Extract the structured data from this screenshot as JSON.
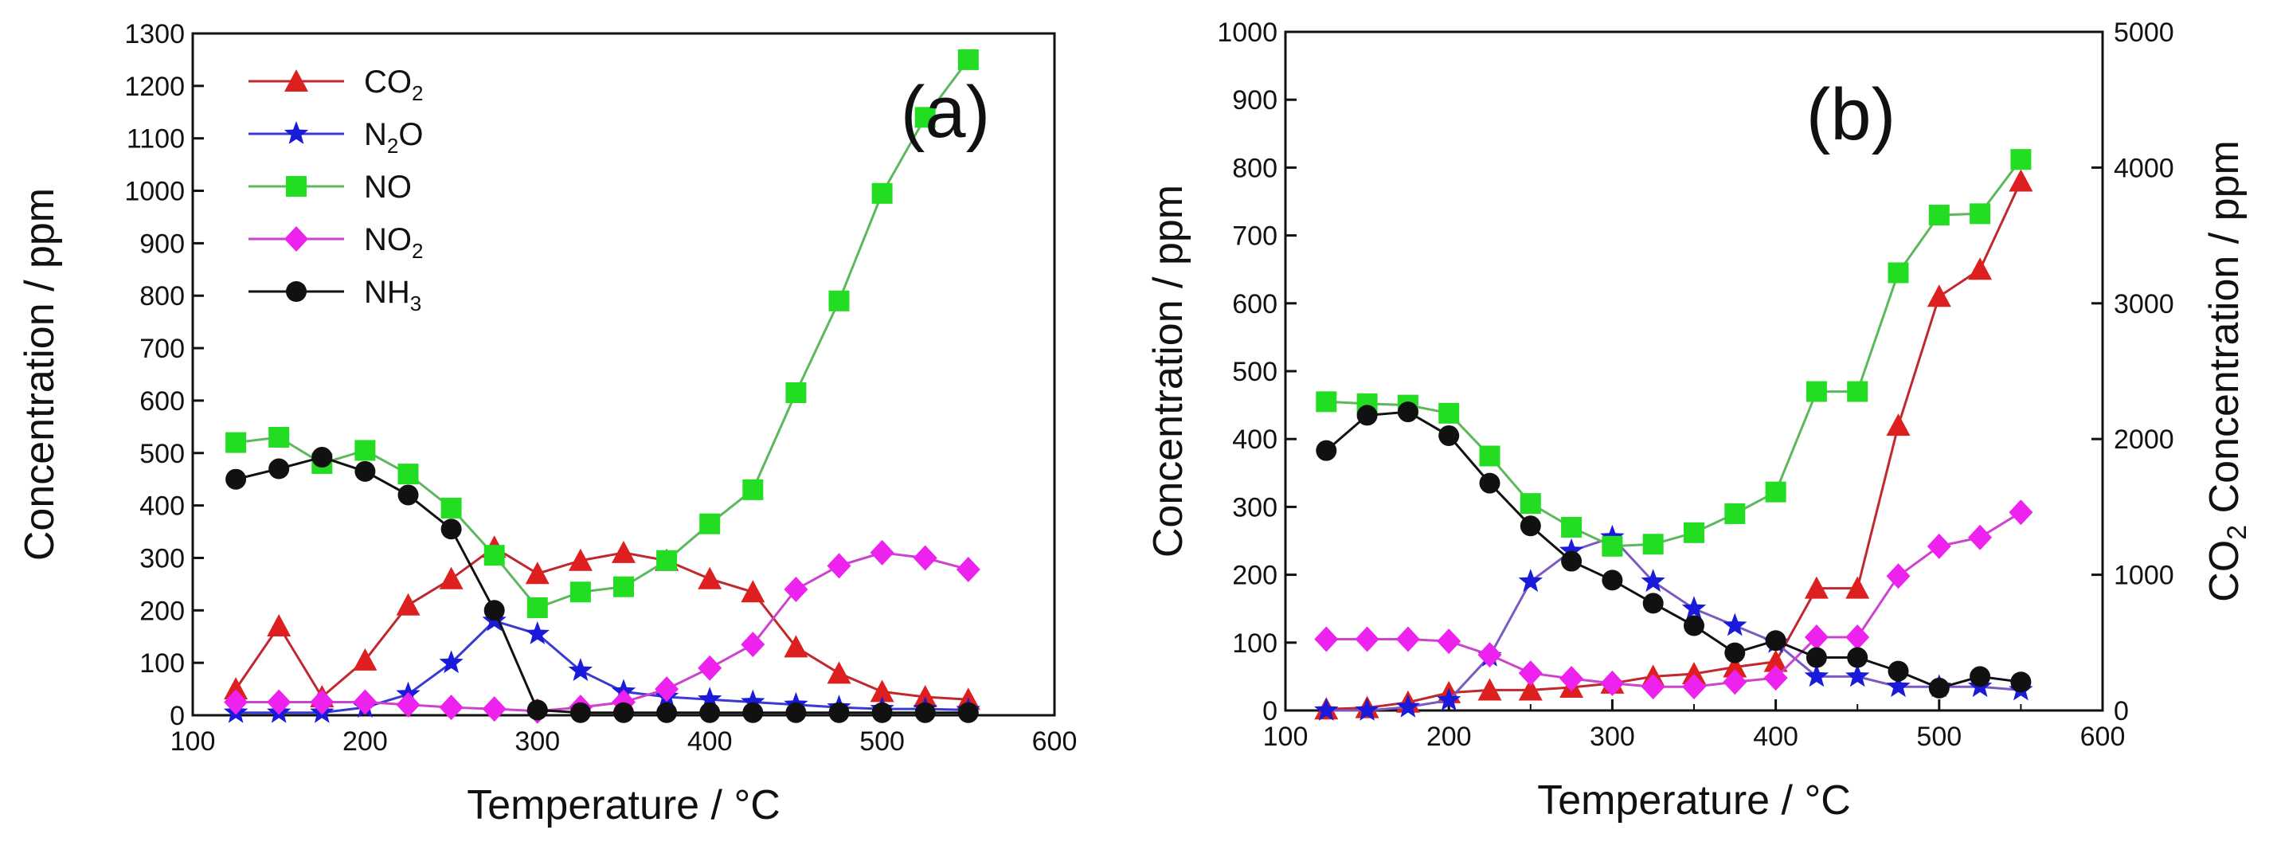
{
  "chart_data": [
    {
      "type": "line",
      "panel_label": "(a)",
      "xlabel": "Temperature / °C",
      "ylabel": "Concentration / ppm",
      "xlim": [
        100,
        600
      ],
      "ylim": [
        0,
        1300
      ],
      "xticks": [
        100,
        200,
        300,
        400,
        500,
        600
      ],
      "yticks": [
        0,
        100,
        200,
        300,
        400,
        500,
        600,
        700,
        800,
        900,
        1000,
        1100,
        1200,
        1300
      ],
      "legend_position": "top-left",
      "x": [
        125,
        150,
        175,
        200,
        225,
        250,
        275,
        300,
        325,
        350,
        375,
        400,
        425,
        450,
        475,
        500,
        525,
        550
      ],
      "series": [
        {
          "name": "CO2",
          "label_main": "CO",
          "label_sub": "2",
          "color": "#dd1f1f",
          "line_color": "#c0282e",
          "marker": "triangle",
          "values": [
            50,
            170,
            35,
            105,
            210,
            260,
            320,
            270,
            295,
            310,
            295,
            260,
            235,
            130,
            80,
            45,
            35,
            30
          ]
        },
        {
          "name": "N2O",
          "label_main": "N",
          "label_sub": "2",
          "label_tail": "O",
          "color": "#1a1adb",
          "line_color": "#3a3ad0",
          "marker": "star",
          "values": [
            5,
            5,
            5,
            15,
            40,
            100,
            180,
            155,
            85,
            45,
            35,
            30,
            25,
            20,
            15,
            12,
            12,
            10
          ]
        },
        {
          "name": "NO",
          "label_main": "NO",
          "color": "#22dd22",
          "line_color": "#5cb85c",
          "marker": "square",
          "values": [
            520,
            530,
            480,
            505,
            460,
            395,
            305,
            205,
            235,
            245,
            295,
            365,
            430,
            615,
            790,
            995,
            1140,
            1250
          ]
        },
        {
          "name": "NO2",
          "label_main": "NO",
          "label_sub": "2",
          "color": "#ee22ee",
          "line_color": "#cc44cc",
          "marker": "diamond",
          "values": [
            25,
            25,
            25,
            25,
            20,
            15,
            12,
            8,
            15,
            25,
            50,
            90,
            135,
            240,
            285,
            310,
            300,
            278
          ]
        },
        {
          "name": "NH3",
          "label_main": "NH",
          "label_sub": "3",
          "color": "#111111",
          "line_color": "#111111",
          "marker": "circle",
          "x": [
            125,
            150,
            175,
            200,
            225,
            250,
            275,
            300,
            325,
            350,
            375,
            400,
            425,
            450,
            475,
            500,
            525,
            550
          ],
          "values": [
            450,
            470,
            492,
            465,
            420,
            355,
            200,
            10,
            5,
            5,
            5,
            5,
            5,
            5,
            5,
            5,
            5,
            5
          ]
        }
      ]
    },
    {
      "type": "line",
      "panel_label": "(b)",
      "xlabel": "Temperature / °C",
      "ylabel": "Concentration / ppm",
      "ylabel_right_main": "CO",
      "ylabel_right_sub": "2",
      "ylabel_right_tail": " Concentration / ppm",
      "xlim": [
        100,
        600
      ],
      "ylim": [
        0,
        1000
      ],
      "ylim_right": [
        0,
        5000
      ],
      "xticks": [
        100,
        200,
        300,
        400,
        500,
        600
      ],
      "yticks": [
        0,
        100,
        200,
        300,
        400,
        500,
        600,
        700,
        800,
        900,
        1000
      ],
      "yticks_right": [
        0,
        1000,
        2000,
        3000,
        4000,
        5000
      ],
      "x": [
        125,
        150,
        175,
        200,
        225,
        250,
        275,
        300,
        325,
        350,
        375,
        400,
        425,
        450,
        475,
        500,
        525,
        550
      ],
      "series": [
        {
          "name": "CO2",
          "axis": "right",
          "color": "#dd1f1f",
          "line_color": "#c0282e",
          "marker": "triangle",
          "values": [
            10,
            20,
            60,
            130,
            150,
            150,
            170,
            200,
            250,
            270,
            320,
            360,
            900,
            900,
            2100,
            3050,
            3250,
            3900
          ]
        },
        {
          "name": "N2O",
          "axis": "left",
          "color": "#1a1adb",
          "line_color": "#7a5ac0",
          "marker": "star",
          "values": [
            0,
            0,
            5,
            15,
            80,
            190,
            235,
            255,
            190,
            150,
            125,
            100,
            50,
            50,
            35,
            35,
            35,
            30
          ]
        },
        {
          "name": "NO",
          "axis": "left",
          "color": "#22dd22",
          "line_color": "#5cb85c",
          "marker": "square",
          "values": [
            455,
            452,
            450,
            438,
            375,
            305,
            270,
            242,
            245,
            262,
            290,
            322,
            470,
            470,
            645,
            730,
            732,
            812
          ]
        },
        {
          "name": "NO2",
          "axis": "left",
          "color": "#ee22ee",
          "line_color": "#cc44cc",
          "marker": "diamond",
          "values": [
            105,
            105,
            105,
            102,
            82,
            55,
            47,
            40,
            35,
            35,
            42,
            48,
            108,
            108,
            198,
            242,
            255,
            292
          ]
        },
        {
          "name": "NH3",
          "axis": "left",
          "color": "#111111",
          "line_color": "#111111",
          "marker": "circle",
          "values": [
            383,
            435,
            440,
            405,
            335,
            272,
            220,
            192,
            158,
            125,
            85,
            103,
            78,
            78,
            58,
            33,
            50,
            42
          ]
        }
      ]
    }
  ]
}
